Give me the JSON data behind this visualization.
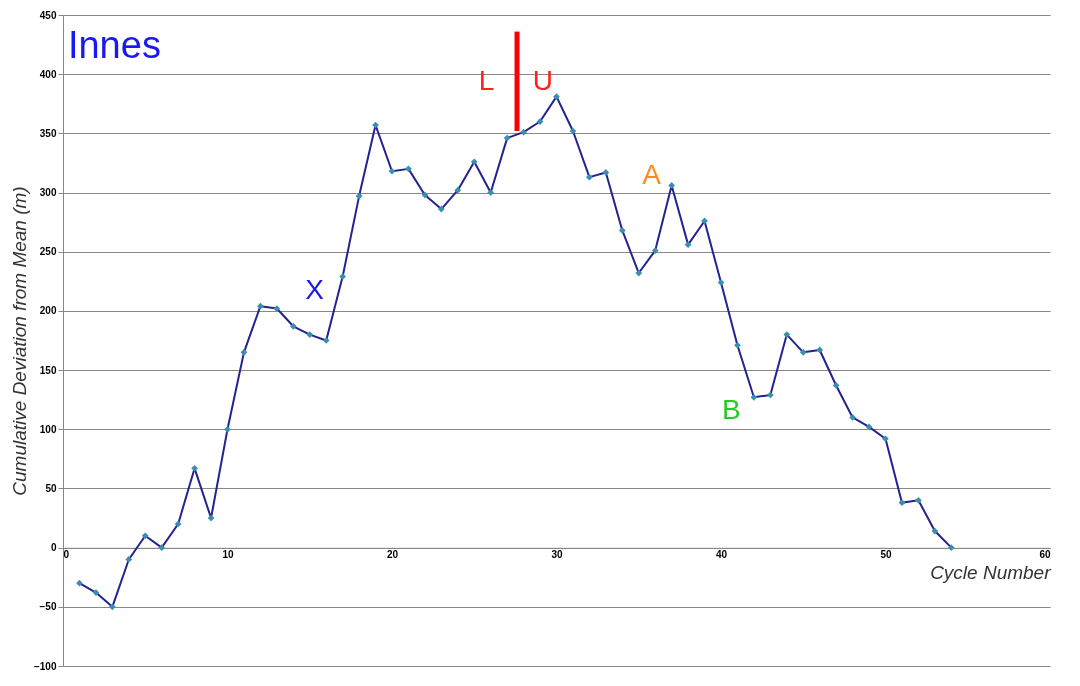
{
  "chart_data": {
    "type": "line",
    "xlabel": "Cycle Number",
    "ylabel": "Cumulative Deviation from Mean (m)",
    "xlim": [
      0,
      60
    ],
    "xticks": [
      0,
      10,
      20,
      30,
      40,
      50,
      60
    ],
    "ylim": [
      -100,
      450
    ],
    "yticks": [
      -100,
      -50,
      0,
      50,
      100,
      150,
      200,
      250,
      300,
      350,
      400,
      450
    ],
    "grid": "y",
    "marker": "diamond",
    "line_style": "solid",
    "series": [
      {
        "color": "#23238f",
        "x": [
          1,
          2,
          3,
          4,
          5,
          6,
          7,
          8,
          9,
          10,
          11,
          12,
          13,
          14,
          15,
          16,
          17,
          18,
          19,
          20,
          21,
          22,
          23,
          24,
          25,
          26,
          27,
          28,
          29,
          30,
          31,
          32,
          33,
          34,
          35,
          36,
          37,
          38,
          39,
          40,
          41,
          42,
          43,
          44,
          45,
          46,
          47,
          48,
          49,
          50,
          51,
          52,
          53,
          54
        ],
        "values": [
          -30,
          -38,
          -50,
          -10,
          10,
          0,
          20,
          67,
          25,
          100,
          165,
          204,
          202,
          187,
          180,
          175,
          229,
          297,
          357,
          318,
          320,
          298,
          286,
          302,
          326,
          300,
          346,
          351,
          360,
          381,
          352,
          313,
          317,
          268,
          232,
          251,
          306,
          256,
          276,
          224,
          171,
          127,
          129,
          180,
          165,
          167,
          137,
          110,
          102,
          92,
          38,
          40,
          14,
          0
        ]
      },
      {
        "type": "line",
        "color": "#ff0000",
        "marker": "none",
        "x": [
          27.6,
          27.6
        ],
        "values": [
          352,
          436
        ]
      }
    ],
    "annotations": [
      "Innes",
      "X",
      "L",
      "U",
      "A",
      "B"
    ]
  }
}
